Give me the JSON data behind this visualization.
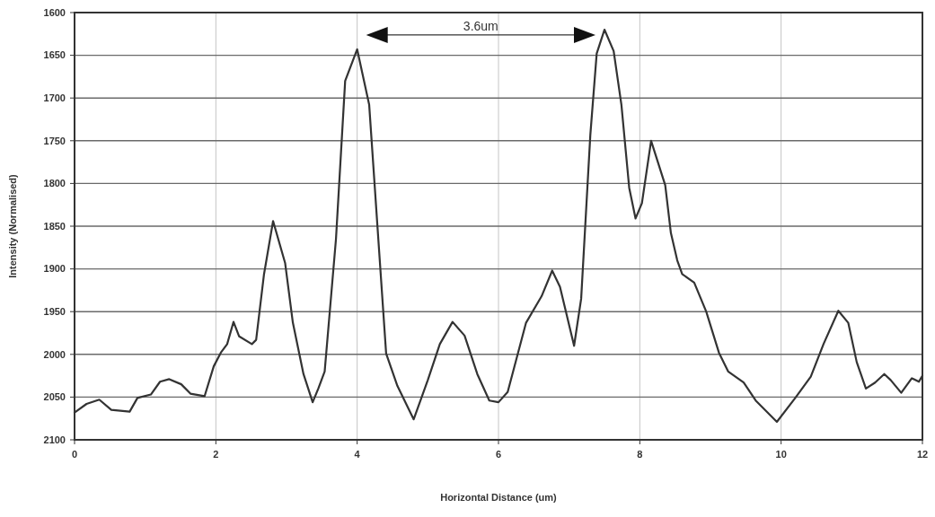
{
  "chart_data": {
    "type": "line",
    "xlabel": "Horizontal Distance (um)",
    "ylabel": "Intensity (Normalised)",
    "xlim": [
      0,
      12
    ],
    "xticks": [
      0,
      2,
      4,
      6,
      8,
      10,
      12
    ],
    "ylim": [
      2100,
      1600
    ],
    "yticks": [
      1600,
      1650,
      1700,
      1750,
      1800,
      1850,
      1900,
      1950,
      2000,
      2050,
      2100
    ],
    "grid": true,
    "annotations": [
      "3.6um"
    ],
    "series": [
      {
        "color": "#333333",
        "x": [
          0,
          0.17,
          0.35,
          0.52,
          0.78,
          0.89,
          1.08,
          1.21,
          1.34,
          1.51,
          1.64,
          1.84,
          1.97,
          2.07,
          2.16,
          2.25,
          2.33,
          2.51,
          2.57,
          2.68,
          2.81,
          2.98,
          3.09,
          3.24,
          3.37,
          3.45,
          3.54,
          3.7,
          3.83,
          4.0,
          4.17,
          4.3,
          4.41,
          4.57,
          4.8,
          5.0,
          5.17,
          5.35,
          5.52,
          5.7,
          5.87,
          6.0,
          6.13,
          6.39,
          6.61,
          6.76,
          6.87,
          7.07,
          7.17,
          7.3,
          7.39,
          7.5,
          7.63,
          7.74,
          7.85,
          7.94,
          8.03,
          8.16,
          8.36,
          8.44,
          8.53,
          8.6,
          8.77,
          8.94,
          9.12,
          9.25,
          9.47,
          9.64,
          9.94,
          10.2,
          10.42,
          10.6,
          10.81,
          10.95,
          11.07,
          11.2,
          11.33,
          11.46,
          11.55,
          11.7,
          11.85,
          11.95,
          12.0
        ],
        "values": [
          2068,
          2058,
          2053,
          2065,
          2067,
          2051,
          2047,
          2032,
          2029,
          2035,
          2046,
          2049,
          2014,
          1998,
          1988,
          1962,
          1979,
          1988,
          1983,
          1907,
          1844,
          1893,
          1963,
          2023,
          2056,
          2040,
          2020,
          1865,
          1680,
          1643,
          1708,
          1866,
          1999,
          2037,
          2076,
          2030,
          1988,
          1962,
          1978,
          2023,
          2054,
          2056,
          2044,
          1963,
          1932,
          1902,
          1921,
          1990,
          1935,
          1743,
          1648,
          1620,
          1645,
          1708,
          1805,
          1841,
          1823,
          1750,
          1802,
          1858,
          1890,
          1906,
          1916,
          1950,
          1998,
          2020,
          2033,
          2054,
          2079,
          2051,
          2026,
          1988,
          1949,
          1963,
          2009,
          2040,
          2033,
          2023,
          2030,
          2045,
          2028,
          2032,
          2025
        ]
      }
    ]
  }
}
